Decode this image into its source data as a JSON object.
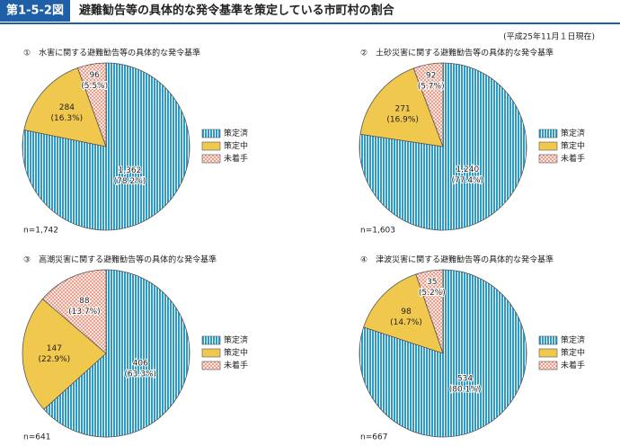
{
  "header": {
    "label": "第1-5-2図",
    "title": "避難勧告等の具体的な発令基準を策定している市町村の割合",
    "note": "(平成25年11月１日現在)"
  },
  "chart_data": [
    {
      "type": "pie",
      "title": "①　水害に関する避難勧告等の具体的な発令基準",
      "n_label": "n=1,742",
      "categories": [
        "策定済",
        "策定中",
        "未着手"
      ],
      "colors": [
        "#2a9cc8",
        "#f0c84e",
        "#e9a08f"
      ],
      "values": [
        1362,
        284,
        96
      ],
      "value_labels": [
        "1,362",
        "284",
        "96"
      ],
      "percents": [
        78.2,
        16.3,
        5.5
      ],
      "percent_labels": [
        "(78.2%)",
        "(16.3%)",
        "(5.5%)"
      ]
    },
    {
      "type": "pie",
      "title": "②　土砂災害に関する避難勧告等の具体的な発令基準",
      "n_label": "n=1,603",
      "categories": [
        "策定済",
        "策定中",
        "未着手"
      ],
      "colors": [
        "#2a9cc8",
        "#f0c84e",
        "#e9a08f"
      ],
      "values": [
        1240,
        271,
        92
      ],
      "value_labels": [
        "1,240",
        "271",
        "92"
      ],
      "percents": [
        77.4,
        16.9,
        5.7
      ],
      "percent_labels": [
        "(77.4%)",
        "(16.9%)",
        "(5.7%)"
      ]
    },
    {
      "type": "pie",
      "title": "③　高潮災害に関する避難勧告等の具体的な発令基準",
      "n_label": "n=641",
      "categories": [
        "策定済",
        "策定中",
        "未着手"
      ],
      "colors": [
        "#2a9cc8",
        "#f0c84e",
        "#e9a08f"
      ],
      "values": [
        406,
        147,
        88
      ],
      "value_labels": [
        "406",
        "147",
        "88"
      ],
      "percents": [
        63.3,
        22.9,
        13.7
      ],
      "percent_labels": [
        "(63.3%)",
        "(22.9%)",
        "(13.7%)"
      ]
    },
    {
      "type": "pie",
      "title": "④　津波災害に関する避難勧告等の具体的な発令基準",
      "n_label": "n=667",
      "categories": [
        "策定済",
        "策定中",
        "未着手"
      ],
      "colors": [
        "#2a9cc8",
        "#f0c84e",
        "#e9a08f"
      ],
      "values": [
        534,
        98,
        35
      ],
      "value_labels": [
        "534",
        "98",
        "35"
      ],
      "percents": [
        80.1,
        14.7,
        5.2
      ],
      "percent_labels": [
        "(80.1%)",
        "(14.7%)",
        "(5.2%)"
      ]
    }
  ]
}
